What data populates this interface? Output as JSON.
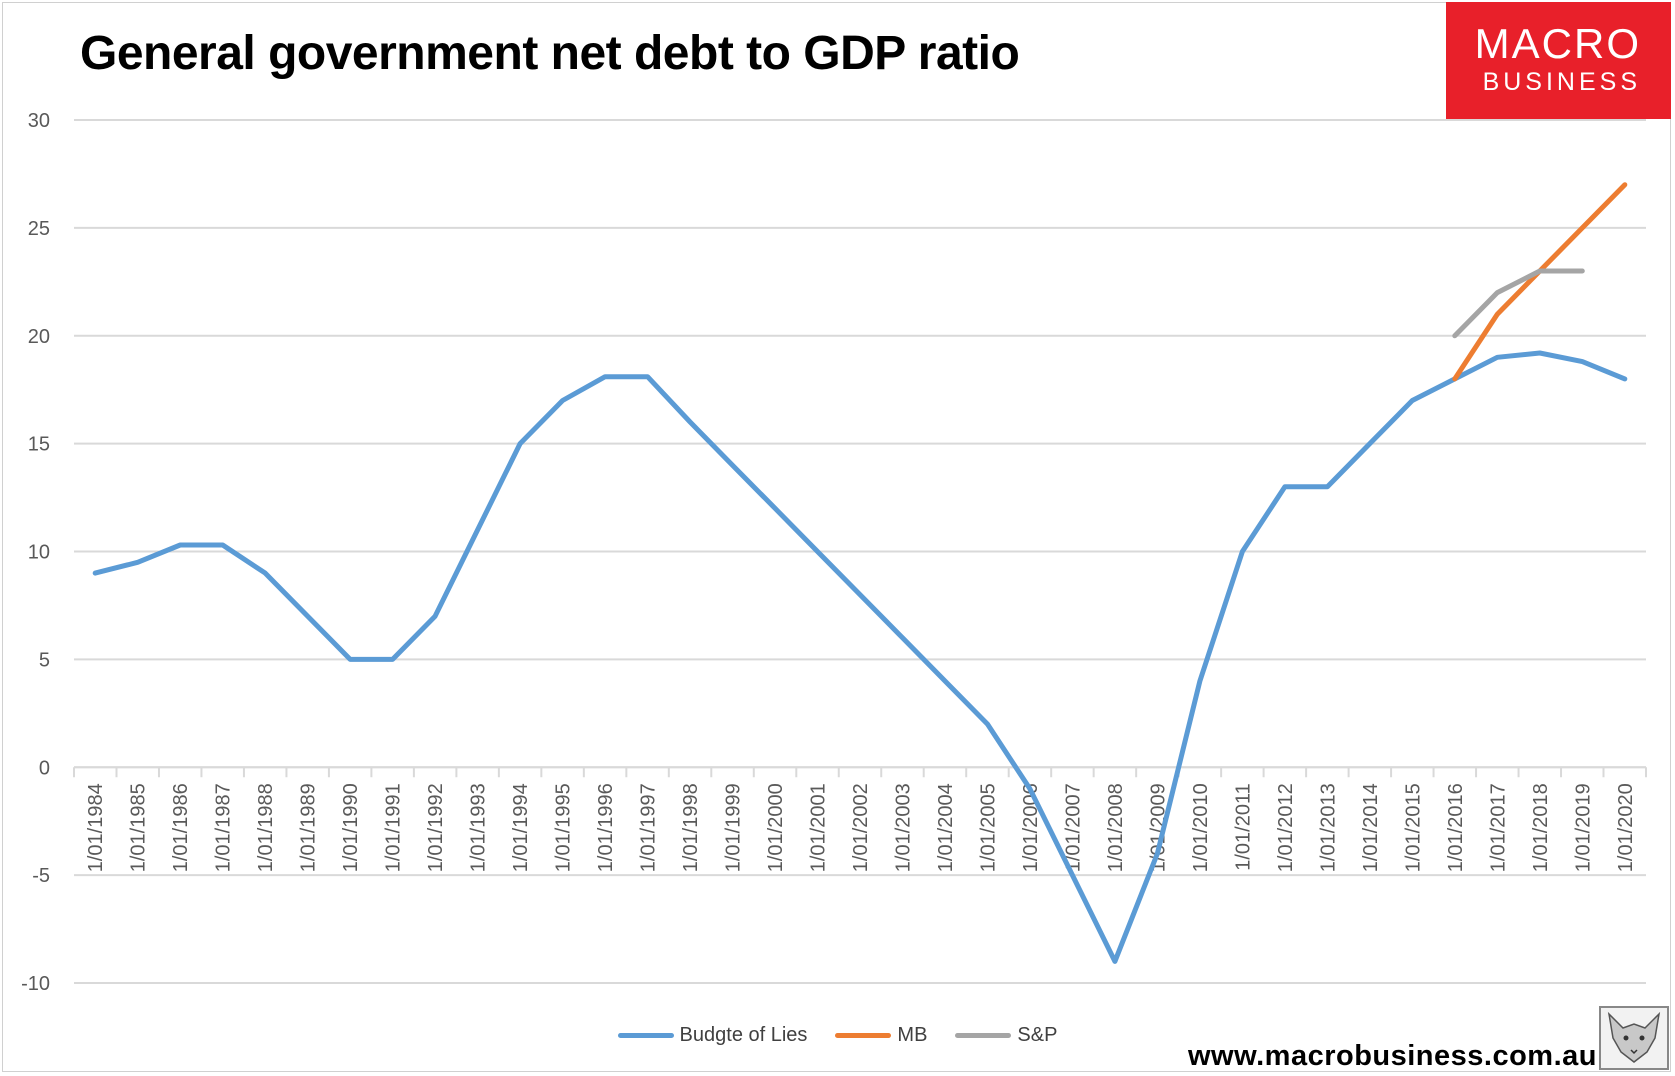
{
  "title": "General government net debt to GDP ratio",
  "logo": {
    "line1": "MACRO",
    "line2": "BUSINESS"
  },
  "website": "www.macrobusiness.com.au",
  "colors": {
    "budget": "#5b9bd5",
    "mb": "#ed7d31",
    "sp": "#a5a5a5",
    "grid": "#d9d9d9",
    "axis_text": "#595959",
    "logo_red": "#e8202a"
  },
  "chart_data": {
    "type": "line",
    "title": "General government net debt to GDP ratio",
    "xlabel": "",
    "ylabel": "",
    "ylim": [
      -10,
      30
    ],
    "yticks": [
      30,
      25,
      20,
      15,
      10,
      5,
      0,
      -5,
      -10
    ],
    "grid": true,
    "legend_position": "bottom",
    "categories": [
      "1/01/1984",
      "1/01/1985",
      "1/01/1986",
      "1/01/1987",
      "1/01/1988",
      "1/01/1989",
      "1/01/1990",
      "1/01/1991",
      "1/01/1992",
      "1/01/1993",
      "1/01/1994",
      "1/01/1995",
      "1/01/1996",
      "1/01/1997",
      "1/01/1998",
      "1/01/1999",
      "1/01/2000",
      "1/01/2001",
      "1/01/2002",
      "1/01/2003",
      "1/01/2004",
      "1/01/2005",
      "1/01/2006",
      "1/01/2007",
      "1/01/2008",
      "1/01/2009",
      "1/01/2010",
      "1/01/2011",
      "1/01/2012",
      "1/01/2013",
      "1/01/2014",
      "1/01/2015",
      "1/01/2016",
      "1/01/2017",
      "1/01/2018",
      "1/01/2019",
      "1/01/2020"
    ],
    "series": [
      {
        "name": "Budgte of Lies",
        "color": "#5b9bd5",
        "values": [
          9,
          9.5,
          10.3,
          10.3,
          9,
          7,
          5,
          5,
          7,
          11,
          15,
          17,
          18.1,
          18.1,
          16,
          14,
          12,
          10,
          8,
          6,
          4,
          2,
          -1,
          -5,
          -9,
          -4,
          4,
          10,
          13,
          13,
          15,
          17,
          18,
          19,
          19.2,
          18.8,
          18
        ]
      },
      {
        "name": "MB",
        "color": "#ed7d31",
        "values": [
          null,
          null,
          null,
          null,
          null,
          null,
          null,
          null,
          null,
          null,
          null,
          null,
          null,
          null,
          null,
          null,
          null,
          null,
          null,
          null,
          null,
          null,
          null,
          null,
          null,
          null,
          null,
          null,
          null,
          null,
          null,
          null,
          18,
          21,
          23,
          25,
          27
        ]
      },
      {
        "name": "S&P",
        "color": "#a5a5a5",
        "values": [
          null,
          null,
          null,
          null,
          null,
          null,
          null,
          null,
          null,
          null,
          null,
          null,
          null,
          null,
          null,
          null,
          null,
          null,
          null,
          null,
          null,
          null,
          null,
          null,
          null,
          null,
          null,
          null,
          null,
          null,
          null,
          null,
          20,
          22,
          23,
          23,
          null
        ]
      }
    ]
  }
}
